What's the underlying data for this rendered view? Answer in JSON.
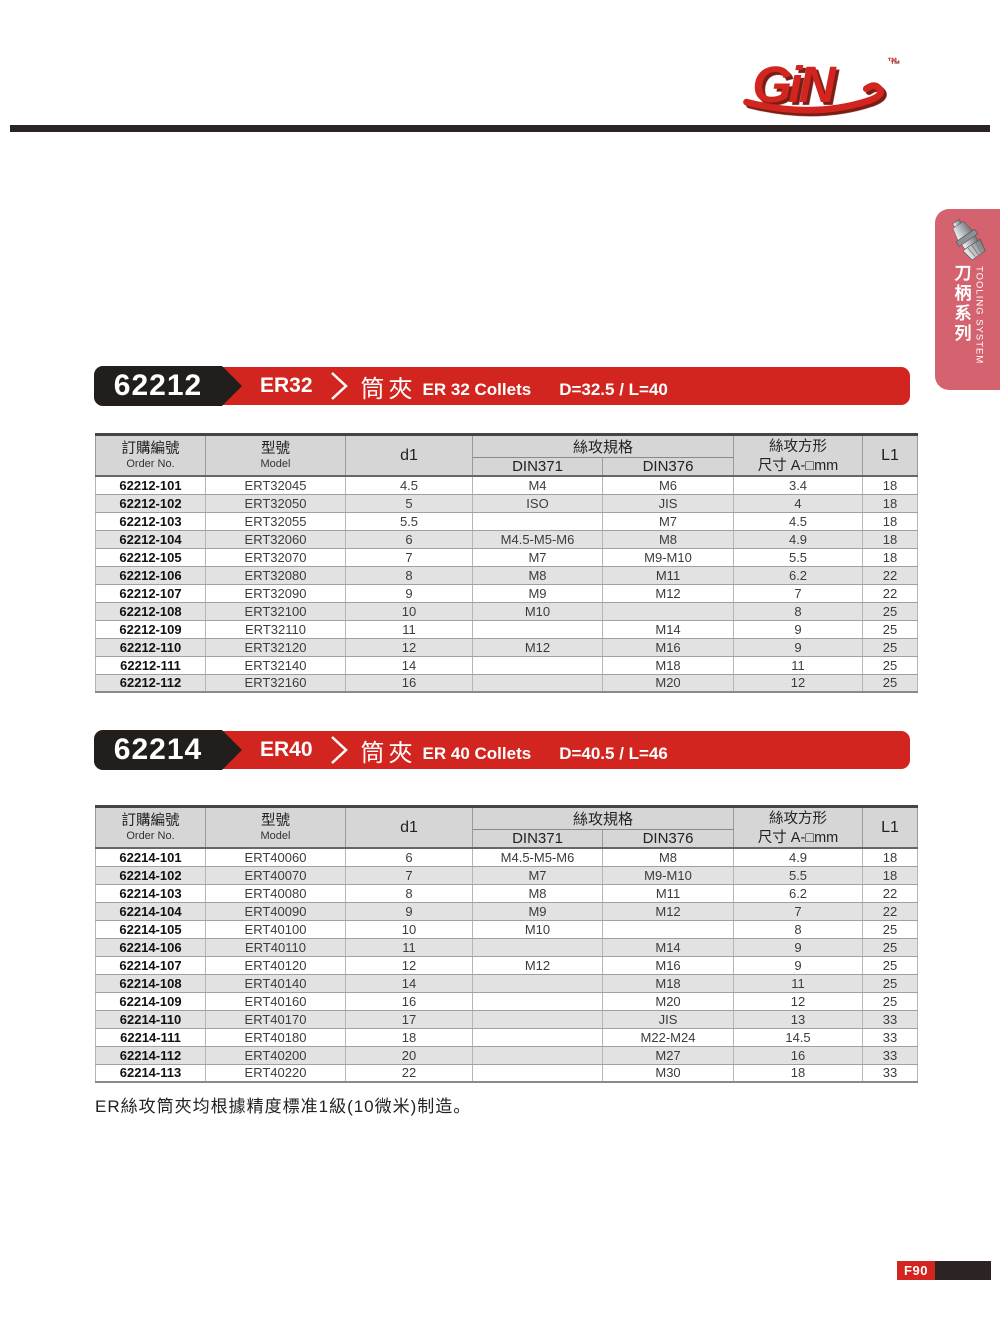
{
  "logo": {
    "text": "GiN",
    "trademark": "™"
  },
  "sidebar_tab": {
    "zh": "刀柄系列",
    "en": "TOOLING SYSTEM"
  },
  "table_header": {
    "order_no_zh": "訂購編號",
    "order_no_en": "Order No.",
    "model_zh": "型號",
    "model_en": "Model",
    "d1": "d1",
    "tap_spec_zh": "絲攻規格",
    "din371": "DIN371",
    "din376": "DIN376",
    "square_zh": "絲攻方形",
    "square_dim": "尺寸 A-□mm",
    "l1": "L1"
  },
  "sections": [
    {
      "order_code": "62212",
      "size_label": "ER32",
      "title_zh": "筒夾",
      "title_en": "ER 32 Collets",
      "dims": "D=32.5 / L=40",
      "rows": [
        [
          "62212-101",
          "ERT32045",
          "4.5",
          "M4",
          "M6",
          "3.4",
          "18"
        ],
        [
          "62212-102",
          "ERT32050",
          "5",
          "ISO",
          "JIS",
          "4",
          "18"
        ],
        [
          "62212-103",
          "ERT32055",
          "5.5",
          "",
          "M7",
          "4.5",
          "18"
        ],
        [
          "62212-104",
          "ERT32060",
          "6",
          "M4.5-M5-M6",
          "M8",
          "4.9",
          "18"
        ],
        [
          "62212-105",
          "ERT32070",
          "7",
          "M7",
          "M9-M10",
          "5.5",
          "18"
        ],
        [
          "62212-106",
          "ERT32080",
          "8",
          "M8",
          "M11",
          "6.2",
          "22"
        ],
        [
          "62212-107",
          "ERT32090",
          "9",
          "M9",
          "M12",
          "7",
          "22"
        ],
        [
          "62212-108",
          "ERT32100",
          "10",
          "M10",
          "",
          "8",
          "25"
        ],
        [
          "62212-109",
          "ERT32110",
          "11",
          "",
          "M14",
          "9",
          "25"
        ],
        [
          "62212-110",
          "ERT32120",
          "12",
          "M12",
          "M16",
          "9",
          "25"
        ],
        [
          "62212-111",
          "ERT32140",
          "14",
          "",
          "M18",
          "11",
          "25"
        ],
        [
          "62212-112",
          "ERT32160",
          "16",
          "",
          "M20",
          "12",
          "25"
        ]
      ]
    },
    {
      "order_code": "62214",
      "size_label": "ER40",
      "title_zh": "筒夾",
      "title_en": "ER 40 Collets",
      "dims": "D=40.5 / L=46",
      "rows": [
        [
          "62214-101",
          "ERT40060",
          "6",
          "M4.5-M5-M6",
          "M8",
          "4.9",
          "18"
        ],
        [
          "62214-102",
          "ERT40070",
          "7",
          "M7",
          "M9-M10",
          "5.5",
          "18"
        ],
        [
          "62214-103",
          "ERT40080",
          "8",
          "M8",
          "M11",
          "6.2",
          "22"
        ],
        [
          "62214-104",
          "ERT40090",
          "9",
          "M9",
          "M12",
          "7",
          "22"
        ],
        [
          "62214-105",
          "ERT40100",
          "10",
          "M10",
          "",
          "8",
          "25"
        ],
        [
          "62214-106",
          "ERT40110",
          "11",
          "",
          "M14",
          "9",
          "25"
        ],
        [
          "62214-107",
          "ERT40120",
          "12",
          "M12",
          "M16",
          "9",
          "25"
        ],
        [
          "62214-108",
          "ERT40140",
          "14",
          "",
          "M18",
          "11",
          "25"
        ],
        [
          "62214-109",
          "ERT40160",
          "16",
          "",
          "M20",
          "12",
          "25"
        ],
        [
          "62214-110",
          "ERT40170",
          "17",
          "",
          "JIS",
          "13",
          "33"
        ],
        [
          "62214-111",
          "ERT40180",
          "18",
          "",
          "M22-M24",
          "14.5",
          "33"
        ],
        [
          "62214-112",
          "ERT40200",
          "20",
          "",
          "M27",
          "16",
          "33"
        ],
        [
          "62214-113",
          "ERT40220",
          "22",
          "",
          "M30",
          "18",
          "33"
        ]
      ]
    }
  ],
  "note": "ER絲攻筒夾均根據精度標准1級(10微米)制造。",
  "page_number": "F90",
  "colors": {
    "red": "#d3251f",
    "black_badge": "#221e1c",
    "tab_pink": "#d5626f",
    "header_gray": "#d6d6d6",
    "row_alt": "#e2e2e2"
  }
}
